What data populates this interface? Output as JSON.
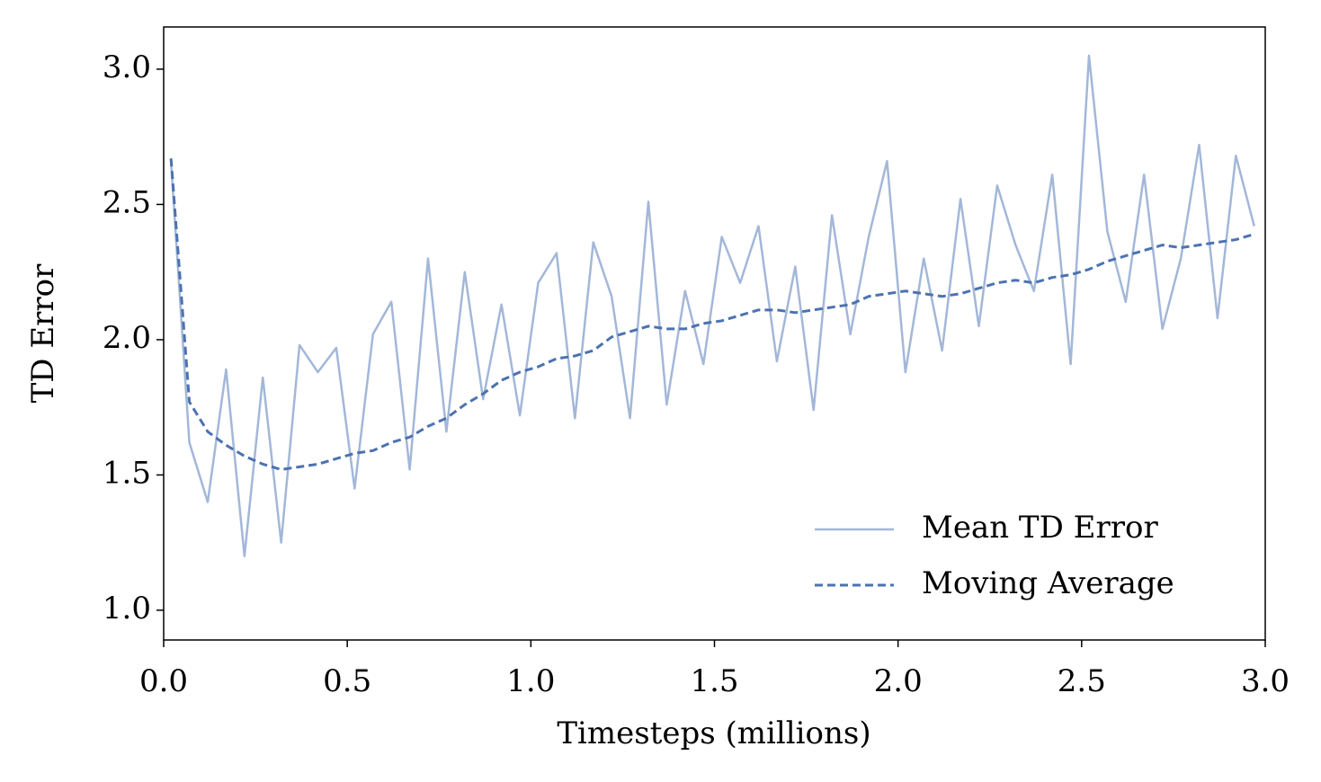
{
  "chart_data": {
    "type": "line",
    "x_label": "Timesteps (millions)",
    "y_label": "TD Error",
    "xlim": [
      0,
      3
    ],
    "ylim": [
      0.89,
      3.156
    ],
    "xticks": [
      {
        "value": 0,
        "label": "0.0"
      },
      0.5,
      {
        "value": 1,
        "label": "1.0"
      },
      1.5,
      {
        "value": 2,
        "label": "2.0"
      },
      2.5,
      {
        "value": 3,
        "label": "3.0"
      }
    ],
    "yticks": [
      {
        "value": 1,
        "label": "1.0"
      },
      1.5,
      {
        "value": 2,
        "label": "2.0"
      },
      2.5,
      {
        "value": 3,
        "label": "3.0"
      }
    ],
    "legend": "lower right",
    "x": [
      0.02,
      0.07,
      0.12,
      0.17,
      0.22,
      0.27,
      0.32,
      0.37,
      0.42,
      0.47,
      0.52,
      0.57,
      0.62,
      0.67,
      0.72,
      0.77,
      0.82,
      0.87,
      0.92,
      0.97,
      1.02,
      1.07,
      1.12,
      1.17,
      1.22,
      1.27,
      1.32,
      1.37,
      1.42,
      1.47,
      1.52,
      1.57,
      1.62,
      1.67,
      1.72,
      1.77,
      1.82,
      1.87,
      1.92,
      1.97,
      2.02,
      2.07,
      2.12,
      2.17,
      2.22,
      2.27,
      2.32,
      2.37,
      2.42,
      2.47,
      2.52,
      2.57,
      2.62,
      2.67,
      2.72,
      2.77,
      2.82,
      2.87,
      2.92,
      2.97
    ],
    "series": [
      {
        "name": "Mean TD Error",
        "color": "#a3b7d8",
        "dashed": false,
        "values": [
          2.66,
          1.62,
          1.4,
          1.89,
          1.2,
          1.86,
          1.25,
          1.98,
          1.88,
          1.97,
          1.45,
          2.02,
          2.14,
          1.52,
          2.3,
          1.66,
          2.25,
          1.78,
          2.13,
          1.72,
          2.21,
          2.32,
          1.71,
          2.36,
          2.16,
          1.71,
          2.51,
          1.76,
          2.18,
          1.91,
          2.38,
          2.21,
          2.42,
          1.92,
          2.27,
          1.74,
          2.46,
          2.02,
          2.38,
          2.66,
          1.88,
          2.3,
          1.96,
          2.52,
          2.05,
          2.57,
          2.35,
          2.18,
          2.61,
          1.91,
          3.05,
          2.4,
          2.14,
          2.61,
          2.04,
          2.3,
          2.72,
          2.08,
          2.68,
          2.42
        ]
      },
      {
        "name": "Moving Average",
        "color": "#4c72b0",
        "dashed": true,
        "values": [
          2.67,
          1.77,
          1.66,
          1.61,
          1.57,
          1.54,
          1.52,
          1.53,
          1.54,
          1.56,
          1.58,
          1.59,
          1.62,
          1.64,
          1.68,
          1.71,
          1.76,
          1.8,
          1.85,
          1.88,
          1.9,
          1.93,
          1.94,
          1.96,
          2.01,
          2.03,
          2.05,
          2.04,
          2.04,
          2.06,
          2.07,
          2.09,
          2.11,
          2.11,
          2.1,
          2.11,
          2.12,
          2.13,
          2.16,
          2.17,
          2.18,
          2.17,
          2.16,
          2.17,
          2.19,
          2.21,
          2.22,
          2.21,
          2.23,
          2.24,
          2.26,
          2.29,
          2.31,
          2.33,
          2.35,
          2.34,
          2.35,
          2.36,
          2.37,
          2.39
        ]
      }
    ]
  }
}
